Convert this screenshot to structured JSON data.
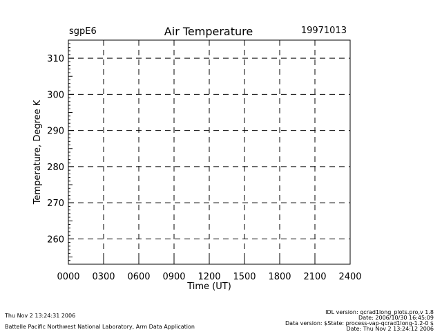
{
  "header": {
    "site": "sgpE6",
    "title": "Air Temperature",
    "date": "19971013"
  },
  "chart_data": {
    "type": "line",
    "title": "Air Temperature",
    "xlabel": "Time (UT)",
    "ylabel": "Temperature, Degree K",
    "x_ticks": [
      "0000",
      "0300",
      "0600",
      "0900",
      "1200",
      "1500",
      "1800",
      "2100",
      "2400"
    ],
    "xlim": [
      0,
      2400
    ],
    "y_ticks": [
      260,
      270,
      280,
      290,
      300,
      310
    ],
    "ylim": [
      253,
      315
    ],
    "grid": true,
    "series": []
  },
  "footer": {
    "left_line1": "Thu Nov  2 13:24:31 2006",
    "left_line2": "Battelle Pacific Northwest National Laboratory, Arm Data Application",
    "right_line1": "IDL version: qcrad1long_plots.pro,v 1.8",
    "right_line2": "Date: 2006/10/30 16:45:09",
    "right_line3": "Data version: $State: process-vap-qcrad1long-1.2-0 $",
    "right_line4": "Date: Thu Nov  2 13:24:12 2006"
  }
}
